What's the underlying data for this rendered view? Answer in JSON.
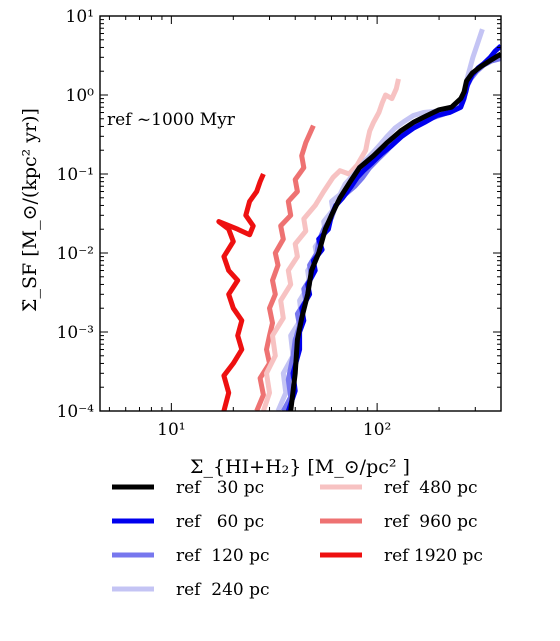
{
  "chart_data": {
    "type": "line",
    "x_scale": "log",
    "y_scale": "log",
    "xlim": [
      4.5,
      400
    ],
    "ylim": [
      0.0001,
      10
    ],
    "xlabel": "Σ_{HI+H₂} [M_⊙/pc² ]",
    "ylabel": "Σ̇_SF [M_⊙/(kpc² yr)]",
    "annotation": "ref ~1000 Myr",
    "x_ticks": [
      {
        "value": 10,
        "label": "10¹"
      },
      {
        "value": 100,
        "label": "10²"
      }
    ],
    "y_ticks": [
      {
        "value": 0.0001,
        "label": "10⁻⁴"
      },
      {
        "value": 0.001,
        "label": "10⁻³"
      },
      {
        "value": 0.01,
        "label": "10⁻²"
      },
      {
        "value": 0.1,
        "label": "10⁻¹"
      },
      {
        "value": 1,
        "label": "10⁰"
      },
      {
        "value": 10,
        "label": "10¹"
      }
    ],
    "grid": false,
    "legend_position": "below plot, two columns",
    "series": [
      {
        "name": "ref   30 pc",
        "color": "#000000",
        "points": [
          [
            38,
            0.0001
          ],
          [
            40,
            0.0003
          ],
          [
            41,
            0.0008
          ],
          [
            43,
            0.0015
          ],
          [
            46,
            0.003
          ],
          [
            48,
            0.006
          ],
          [
            52,
            0.01
          ],
          [
            56,
            0.02
          ],
          [
            60,
            0.03
          ],
          [
            66,
            0.05
          ],
          [
            74,
            0.08
          ],
          [
            82,
            0.12
          ],
          [
            96,
            0.17
          ],
          [
            112,
            0.25
          ],
          [
            130,
            0.35
          ],
          [
            150,
            0.45
          ],
          [
            175,
            0.55
          ],
          [
            200,
            0.65
          ],
          [
            230,
            0.7
          ],
          [
            255,
            0.9
          ],
          [
            265,
            1.1
          ],
          [
            272,
            1.5
          ],
          [
            290,
            1.9
          ],
          [
            320,
            2.3
          ],
          [
            360,
            2.8
          ],
          [
            400,
            3.3
          ]
        ]
      },
      {
        "name": "ref   60 pc",
        "color": "#0000ee",
        "points": [
          [
            37,
            0.0001
          ],
          [
            40,
            0.00018
          ],
          [
            39,
            0.0003
          ],
          [
            42,
            0.0006
          ],
          [
            42,
            0.001
          ],
          [
            44,
            0.0014
          ],
          [
            43,
            0.002
          ],
          [
            47,
            0.003
          ],
          [
            46,
            0.004
          ],
          [
            50,
            0.006
          ],
          [
            49,
            0.008
          ],
          [
            54,
            0.011
          ],
          [
            52,
            0.015
          ],
          [
            58,
            0.02
          ],
          [
            60,
            0.03
          ],
          [
            63,
            0.04
          ],
          [
            68,
            0.05
          ],
          [
            75,
            0.07
          ],
          [
            80,
            0.09
          ],
          [
            86,
            0.11
          ],
          [
            95,
            0.14
          ],
          [
            105,
            0.18
          ],
          [
            118,
            0.23
          ],
          [
            132,
            0.3
          ],
          [
            150,
            0.38
          ],
          [
            170,
            0.45
          ],
          [
            195,
            0.55
          ],
          [
            225,
            0.6
          ],
          [
            255,
            0.7
          ],
          [
            262,
            0.85
          ],
          [
            270,
            1.1
          ],
          [
            275,
            1.35
          ],
          [
            290,
            1.8
          ],
          [
            310,
            2.2
          ],
          [
            330,
            2.5
          ],
          [
            355,
            3.0
          ],
          [
            375,
            3.6
          ],
          [
            400,
            4.2
          ]
        ]
      },
      {
        "name": "ref  120 pc",
        "color": "#7777ee",
        "points": [
          [
            35,
            0.0001
          ],
          [
            38,
            0.00015
          ],
          [
            37,
            0.00025
          ],
          [
            39,
            0.0005
          ],
          [
            40,
            0.0008
          ],
          [
            42,
            0.0012
          ],
          [
            41,
            0.0017
          ],
          [
            45,
            0.0025
          ],
          [
            44,
            0.0035
          ],
          [
            48,
            0.005
          ],
          [
            47,
            0.007
          ],
          [
            51,
            0.01
          ],
          [
            52,
            0.014
          ],
          [
            55,
            0.02
          ],
          [
            60,
            0.028
          ],
          [
            63,
            0.04
          ],
          [
            70,
            0.055
          ],
          [
            78,
            0.07
          ],
          [
            85,
            0.09
          ],
          [
            92,
            0.12
          ],
          [
            100,
            0.15
          ],
          [
            112,
            0.2
          ],
          [
            125,
            0.27
          ],
          [
            140,
            0.34
          ],
          [
            158,
            0.42
          ],
          [
            180,
            0.5
          ],
          [
            205,
            0.56
          ],
          [
            230,
            0.62
          ],
          [
            255,
            0.72
          ],
          [
            265,
            0.9
          ],
          [
            270,
            1.2
          ],
          [
            285,
            1.6
          ],
          [
            305,
            2.0
          ],
          [
            330,
            2.4
          ],
          [
            360,
            2.7
          ],
          [
            400,
            2.9
          ]
        ]
      },
      {
        "name": "ref  240 pc",
        "color": "#c4c4f4",
        "points": [
          [
            33,
            0.0001
          ],
          [
            36,
            0.00017
          ],
          [
            35,
            0.0003
          ],
          [
            39,
            0.0005
          ],
          [
            38,
            0.0009
          ],
          [
            43,
            0.0015
          ],
          [
            42,
            0.0025
          ],
          [
            47,
            0.004
          ],
          [
            46,
            0.006
          ],
          [
            51,
            0.009
          ],
          [
            50,
            0.012
          ],
          [
            56,
            0.018
          ],
          [
            55,
            0.025
          ],
          [
            61,
            0.035
          ],
          [
            60,
            0.045
          ],
          [
            66,
            0.055
          ],
          [
            70,
            0.075
          ],
          [
            76,
            0.095
          ],
          [
            82,
            0.12
          ],
          [
            88,
            0.15
          ],
          [
            96,
            0.19
          ],
          [
            104,
            0.24
          ],
          [
            112,
            0.3
          ],
          [
            122,
            0.38
          ],
          [
            135,
            0.46
          ],
          [
            150,
            0.55
          ],
          [
            168,
            0.6
          ],
          [
            190,
            0.62
          ],
          [
            215,
            0.65
          ],
          [
            240,
            0.7
          ],
          [
            260,
            0.9
          ],
          [
            268,
            1.3
          ],
          [
            280,
            2.0
          ],
          [
            292,
            3.0
          ],
          [
            305,
            4.2
          ],
          [
            325,
            6.8
          ]
        ]
      },
      {
        "name": "ref  480 pc",
        "color": "#f7c2c2",
        "points": [
          [
            28,
            0.0001
          ],
          [
            30,
            0.00017
          ],
          [
            29,
            0.0003
          ],
          [
            32,
            0.0005
          ],
          [
            31,
            0.0009
          ],
          [
            35,
            0.0015
          ],
          [
            34,
            0.0025
          ],
          [
            38,
            0.004
          ],
          [
            37,
            0.006
          ],
          [
            41,
            0.009
          ],
          [
            40,
            0.013
          ],
          [
            45,
            0.019
          ],
          [
            44,
            0.027
          ],
          [
            50,
            0.04
          ],
          [
            55,
            0.06
          ],
          [
            61,
            0.09
          ],
          [
            66,
            0.11
          ],
          [
            73,
            0.1
          ],
          [
            80,
            0.13
          ],
          [
            88,
            0.2
          ],
          [
            90,
            0.27
          ],
          [
            92,
            0.35
          ],
          [
            96,
            0.45
          ],
          [
            102,
            0.6
          ],
          [
            106,
            0.8
          ],
          [
            110,
            1.0
          ],
          [
            118,
            0.9
          ],
          [
            124,
            1.2
          ],
          [
            127,
            1.6
          ]
        ]
      },
      {
        "name": "ref  960 pc",
        "color": "#ee7272",
        "points": [
          [
            26,
            0.0001
          ],
          [
            28,
            0.00016
          ],
          [
            27,
            0.00026
          ],
          [
            30,
            0.0004
          ],
          [
            29,
            0.0006
          ],
          [
            30,
            0.0009
          ],
          [
            31,
            0.0013
          ],
          [
            30,
            0.002
          ],
          [
            32,
            0.003
          ],
          [
            31,
            0.0045
          ],
          [
            33,
            0.007
          ],
          [
            32,
            0.01
          ],
          [
            35,
            0.015
          ],
          [
            34,
            0.022
          ],
          [
            38,
            0.03
          ],
          [
            37,
            0.045
          ],
          [
            41,
            0.06
          ],
          [
            40,
            0.085
          ],
          [
            44,
            0.12
          ],
          [
            43,
            0.17
          ],
          [
            45,
            0.25
          ],
          [
            47,
            0.32
          ],
          [
            49,
            0.41
          ]
        ]
      },
      {
        "name": "ref 1920 pc",
        "color": "#ee1010",
        "points": [
          [
            18,
            0.0001
          ],
          [
            19,
            0.00017
          ],
          [
            18,
            0.00028
          ],
          [
            20,
            0.0004
          ],
          [
            22,
            0.0006
          ],
          [
            21,
            0.0009
          ],
          [
            22,
            0.0014
          ],
          [
            20,
            0.002
          ],
          [
            19,
            0.003
          ],
          [
            21,
            0.0045
          ],
          [
            19,
            0.006
          ],
          [
            18,
            0.009
          ],
          [
            20,
            0.014
          ],
          [
            19,
            0.02
          ],
          [
            17,
            0.025
          ],
          [
            21,
            0.02
          ],
          [
            24,
            0.017
          ],
          [
            25,
            0.022
          ],
          [
            23,
            0.03
          ],
          [
            24,
            0.045
          ],
          [
            26,
            0.06
          ],
          [
            27,
            0.08
          ],
          [
            28,
            0.1
          ]
        ]
      }
    ]
  }
}
